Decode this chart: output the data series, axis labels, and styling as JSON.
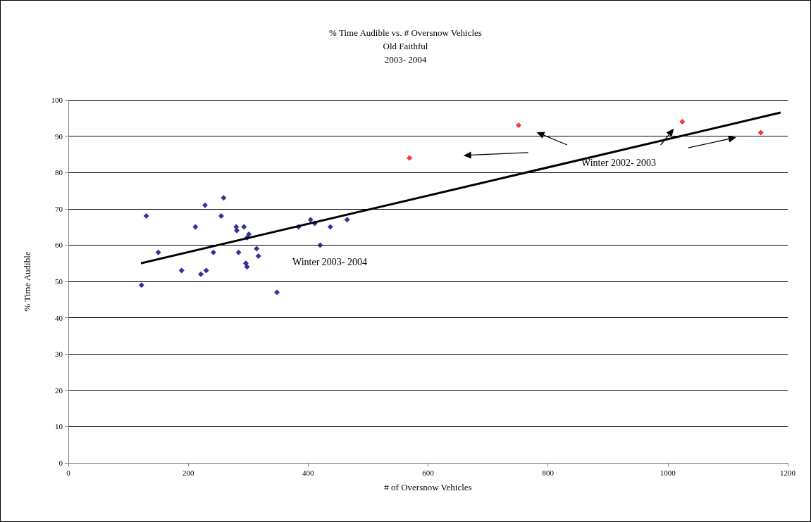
{
  "chart_data": {
    "type": "scatter",
    "title": "% Time Audible vs. # Oversnow Vehicles\nOld Faithful\n2003- 2004",
    "xlabel": "# of Oversnow Vehicles",
    "ylabel": "% Time Audible",
    "xlim": [
      0,
      1200
    ],
    "ylim": [
      0,
      100
    ],
    "xticks": [
      0,
      200,
      400,
      600,
      800,
      1000,
      1200
    ],
    "yticks": [
      0,
      10,
      20,
      30,
      40,
      50,
      60,
      70,
      80,
      90,
      100
    ],
    "grid": "y",
    "marker": "diamond",
    "series": [
      {
        "color": "#000080",
        "x": [
          122,
          130,
          150,
          189,
          212,
          228,
          221,
          230,
          242,
          255,
          259,
          280,
          281,
          284,
          293,
          296,
          298,
          298,
          301,
          314,
          317,
          348,
          384,
          404,
          411,
          420,
          437,
          465
        ],
        "values": [
          49,
          68,
          58,
          53,
          65,
          71,
          52,
          53,
          58,
          68,
          73,
          65,
          64,
          58,
          65,
          55,
          54,
          62,
          63,
          59,
          57,
          47,
          65,
          67,
          66,
          60,
          65,
          67
        ]
      },
      {
        "color": "#ff0000",
        "x": [
          569,
          751,
          1024,
          1155
        ],
        "values": [
          84,
          93,
          94,
          91
        ]
      },
      {
        "type": "line",
        "color": "#000000",
        "marker": "none",
        "x": [
          121,
          1188
        ],
        "values": [
          55,
          96.5
        ]
      }
    ],
    "annotations": [
      "Winter 2003- 2004",
      "Winter 2002- 2003"
    ]
  }
}
